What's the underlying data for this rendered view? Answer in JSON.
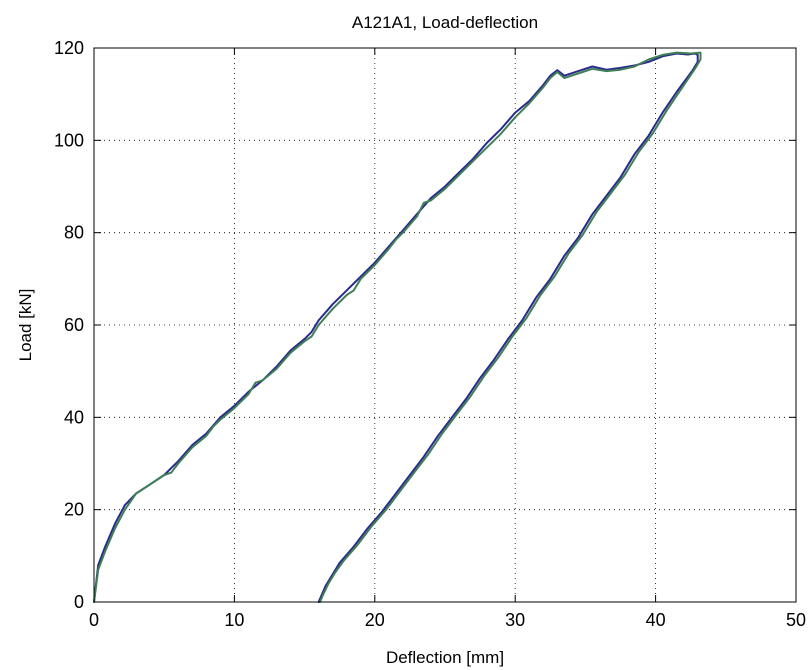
{
  "chart_data": {
    "type": "line",
    "title": "A121A1, Load-deflection",
    "xlabel": "Deflection [mm]",
    "ylabel": "Load [kN]",
    "xlim": [
      0,
      50
    ],
    "ylim": [
      0,
      120
    ],
    "xticks": [
      0,
      10,
      20,
      30,
      40,
      50
    ],
    "yticks": [
      0,
      20,
      40,
      60,
      80,
      100,
      120
    ],
    "grid": true,
    "series": [
      {
        "color": "#2b2b8f",
        "points": [
          [
            0,
            0
          ],
          [
            0.3,
            8
          ],
          [
            0.8,
            12
          ],
          [
            1.5,
            17
          ],
          [
            2.2,
            21
          ],
          [
            3.0,
            23.5
          ],
          [
            4.0,
            25.5
          ],
          [
            5.0,
            27.5
          ],
          [
            6.0,
            30.5
          ],
          [
            7.0,
            34
          ],
          [
            8.0,
            36.5
          ],
          [
            9.0,
            40
          ],
          [
            10.0,
            42.5
          ],
          [
            11.0,
            45.5
          ],
          [
            12.0,
            48
          ],
          [
            13.0,
            51
          ],
          [
            14.0,
            54.5
          ],
          [
            15.0,
            57
          ],
          [
            15.5,
            58.5
          ],
          [
            16.0,
            61
          ],
          [
            17.0,
            64.5
          ],
          [
            18.0,
            67.5
          ],
          [
            19.0,
            70.5
          ],
          [
            20.0,
            73.5
          ],
          [
            21.0,
            77
          ],
          [
            22.0,
            80.5
          ],
          [
            23.0,
            84
          ],
          [
            24.0,
            87.5
          ],
          [
            25.0,
            90
          ],
          [
            26.0,
            93
          ],
          [
            27.0,
            96
          ],
          [
            28.0,
            99.5
          ],
          [
            29.0,
            102.5
          ],
          [
            30.0,
            106
          ],
          [
            31.0,
            108.5
          ],
          [
            32.0,
            112
          ],
          [
            32.5,
            114
          ],
          [
            33.0,
            115.2
          ],
          [
            33.5,
            114
          ],
          [
            34.5,
            115
          ],
          [
            35.5,
            116
          ],
          [
            36.5,
            115.3
          ],
          [
            37.5,
            115.7
          ],
          [
            38.5,
            116.2
          ],
          [
            39.5,
            117
          ],
          [
            40.5,
            118.2
          ],
          [
            41.5,
            118.8
          ],
          [
            42.3,
            118.6
          ],
          [
            42.8,
            118.8
          ],
          [
            43.0,
            118.5
          ],
          [
            43.0,
            117
          ],
          [
            42.6,
            115
          ],
          [
            41.5,
            110.5
          ],
          [
            40.5,
            106
          ],
          [
            39.5,
            101
          ],
          [
            38.5,
            97
          ],
          [
            37.5,
            92
          ],
          [
            36.5,
            88
          ],
          [
            35.5,
            84
          ],
          [
            34.5,
            79
          ],
          [
            33.5,
            75
          ],
          [
            32.5,
            70
          ],
          [
            31.5,
            66
          ],
          [
            30.5,
            61
          ],
          [
            29.5,
            57
          ],
          [
            28.5,
            52.5
          ],
          [
            27.5,
            48.5
          ],
          [
            26.5,
            44
          ],
          [
            25.5,
            40
          ],
          [
            24.5,
            36
          ],
          [
            23.5,
            31.5
          ],
          [
            22.5,
            27.5
          ],
          [
            21.5,
            23.5
          ],
          [
            20.5,
            19.5
          ],
          [
            19.5,
            16
          ],
          [
            18.5,
            12
          ],
          [
            17.5,
            8.5
          ],
          [
            17.0,
            6
          ],
          [
            16.5,
            3.5
          ],
          [
            16.0,
            0
          ]
        ]
      },
      {
        "color": "#3f7f55",
        "points": [
          [
            0,
            0
          ],
          [
            0.3,
            7
          ],
          [
            0.8,
            11
          ],
          [
            1.5,
            16
          ],
          [
            2.2,
            20
          ],
          [
            3.0,
            23.5
          ],
          [
            4.0,
            25.5
          ],
          [
            5.0,
            27.5
          ],
          [
            5.5,
            28
          ],
          [
            6.0,
            30
          ],
          [
            7.0,
            33.5
          ],
          [
            8.0,
            36
          ],
          [
            8.5,
            38
          ],
          [
            9.0,
            39.5
          ],
          [
            10.0,
            42
          ],
          [
            11.0,
            45
          ],
          [
            11.5,
            47.5
          ],
          [
            12.0,
            48
          ],
          [
            13.0,
            50.5
          ],
          [
            14.0,
            54
          ],
          [
            15.0,
            56.5
          ],
          [
            15.5,
            57.5
          ],
          [
            16.0,
            60
          ],
          [
            17.0,
            63.5
          ],
          [
            18.0,
            66.5
          ],
          [
            18.5,
            67.5
          ],
          [
            19.0,
            70
          ],
          [
            20.0,
            73
          ],
          [
            21.0,
            76.5
          ],
          [
            21.5,
            78.5
          ],
          [
            22.0,
            80
          ],
          [
            23.0,
            83.5
          ],
          [
            23.5,
            86.5
          ],
          [
            24.0,
            87
          ],
          [
            25.0,
            89.5
          ],
          [
            26.0,
            92.5
          ],
          [
            27.0,
            95.5
          ],
          [
            28.0,
            98.5
          ],
          [
            29.0,
            101.5
          ],
          [
            30.0,
            105
          ],
          [
            31.0,
            108
          ],
          [
            32.0,
            111.5
          ],
          [
            32.5,
            113.5
          ],
          [
            33.0,
            114.8
          ],
          [
            33.5,
            113.5
          ],
          [
            34.5,
            114.5
          ],
          [
            35.5,
            115.5
          ],
          [
            36.5,
            115
          ],
          [
            37.5,
            115.3
          ],
          [
            38.5,
            116
          ],
          [
            39.5,
            117.5
          ],
          [
            40.5,
            118.5
          ],
          [
            41.5,
            119
          ],
          [
            42.5,
            118.8
          ],
          [
            43.2,
            119
          ],
          [
            43.2,
            117.5
          ],
          [
            42.8,
            115.5
          ],
          [
            41.8,
            111
          ],
          [
            40.8,
            106.5
          ],
          [
            39.8,
            101.5
          ],
          [
            38.8,
            97.5
          ],
          [
            37.8,
            92.5
          ],
          [
            36.8,
            88.5
          ],
          [
            35.8,
            84.5
          ],
          [
            34.8,
            79.5
          ],
          [
            33.8,
            75.5
          ],
          [
            32.8,
            70.5
          ],
          [
            31.8,
            66.5
          ],
          [
            30.8,
            61.5
          ],
          [
            29.8,
            57.5
          ],
          [
            28.8,
            53
          ],
          [
            27.8,
            49
          ],
          [
            26.8,
            44.5
          ],
          [
            25.8,
            40.5
          ],
          [
            24.8,
            36.5
          ],
          [
            23.8,
            32
          ],
          [
            22.8,
            28
          ],
          [
            21.8,
            24
          ],
          [
            20.8,
            20
          ],
          [
            19.8,
            16.5
          ],
          [
            18.8,
            12.5
          ],
          [
            17.8,
            9
          ],
          [
            17.2,
            6.5
          ],
          [
            16.7,
            4
          ],
          [
            16.3,
            1.5
          ],
          [
            16.1,
            0
          ]
        ]
      }
    ]
  }
}
